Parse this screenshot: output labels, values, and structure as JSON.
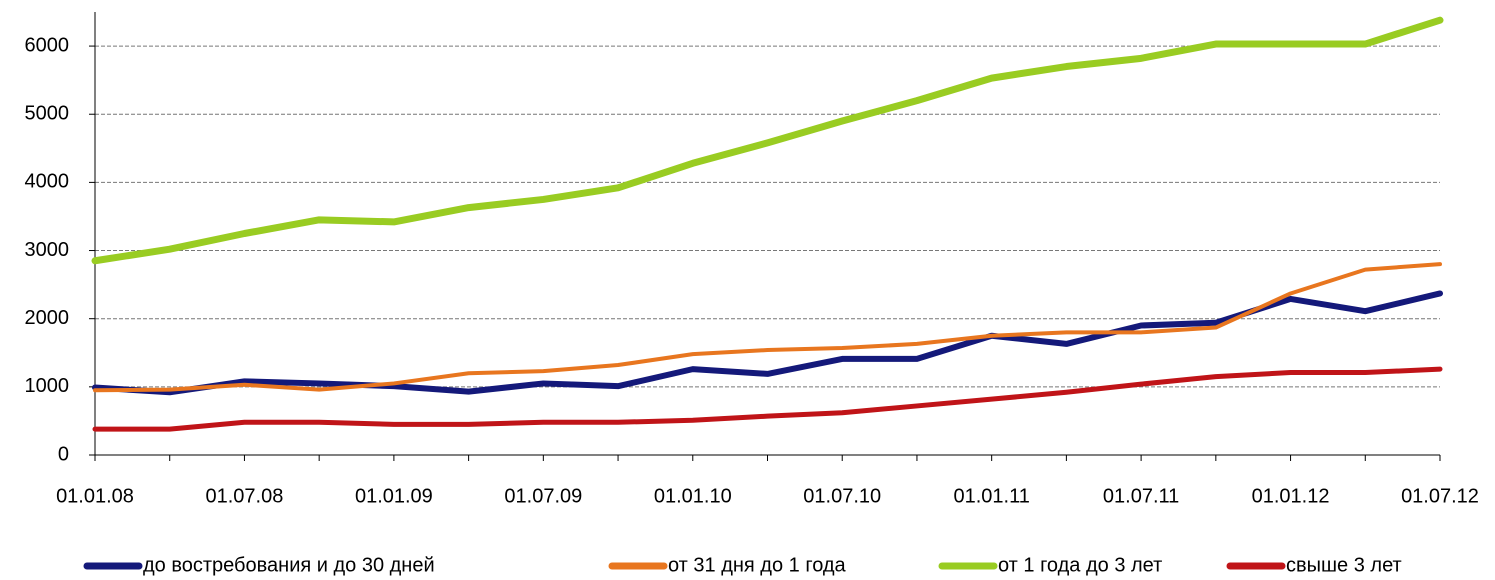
{
  "chart_data": {
    "type": "line",
    "categories": [
      "01.01.08",
      null,
      "01.07.08",
      null,
      "01.01.09",
      null,
      "01.07.09",
      null,
      "01.01.10",
      null,
      "01.07.10",
      null,
      "01.01.11",
      null,
      "01.07.11",
      null,
      "01.01.12",
      null,
      "01.07.12"
    ],
    "series": [
      {
        "name": "до востребования и до 30 дней",
        "color": "#14197a",
        "values": [
          990,
          920,
          1080,
          1050,
          1010,
          930,
          1050,
          1010,
          1260,
          1190,
          1410,
          1410,
          1750,
          1630,
          1900,
          1940,
          2290,
          2110,
          2370
        ]
      },
      {
        "name": "от 31 дня до 1 года",
        "color": "#e8761f",
        "values": [
          950,
          960,
          1030,
          960,
          1050,
          1200,
          1230,
          1320,
          1480,
          1540,
          1570,
          1630,
          1750,
          1800,
          1800,
          1870,
          2370,
          2720,
          2800
        ]
      },
      {
        "name": "от 1 года до 3 лет",
        "color": "#99cc22",
        "values": [
          2850,
          3020,
          3250,
          3450,
          3420,
          3630,
          3750,
          3920,
          4280,
          4580,
          4900,
          5200,
          5530,
          5700,
          5820,
          6030,
          6030,
          6030,
          6380
        ]
      },
      {
        "name": "свыше 3 лет",
        "color": "#c01418",
        "values": [
          380,
          380,
          480,
          480,
          450,
          450,
          480,
          480,
          510,
          570,
          620,
          720,
          820,
          920,
          1040,
          1150,
          1210,
          1210,
          1260
        ]
      }
    ],
    "ylim": [
      0,
      6500
    ],
    "yticks": [
      0,
      1000,
      2000,
      3000,
      4000,
      5000,
      6000
    ],
    "grid": true,
    "legend": "bottom"
  }
}
